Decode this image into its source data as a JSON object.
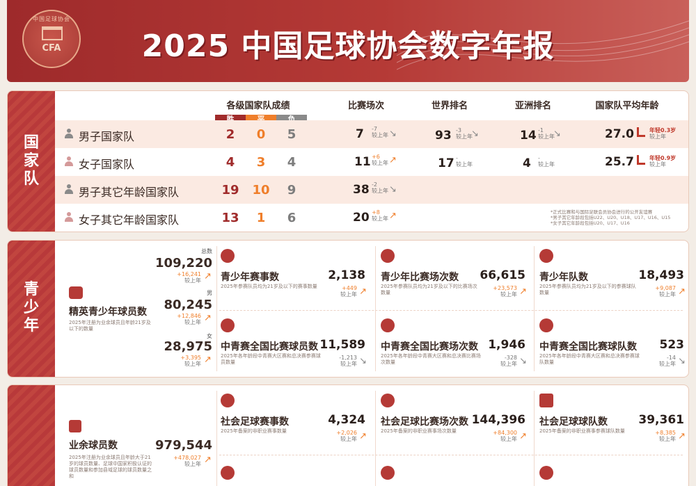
{
  "header": {
    "title": "2025 中国足球协会数字年报",
    "logo_text": "CFA",
    "logo_ring_text": "中国足球协会"
  },
  "national": {
    "side_label": [
      "国",
      "家",
      "队"
    ],
    "col_record": "各级国家队成绩",
    "col_matches": "比赛场次",
    "col_world": "世界排名",
    "col_asia": "亚洲排名",
    "col_age": "国家队平均年龄",
    "wdl": {
      "w": "胜",
      "d": "平",
      "l": "负"
    },
    "compare_label": "较上年",
    "rows": [
      {
        "name": "男子国家队",
        "w": "2",
        "d": "0",
        "l": "5",
        "matches": "7",
        "matches_delta": "-7",
        "world": "93",
        "world_delta": "-3",
        "asia": "14",
        "asia_delta": "-1",
        "age": "27.0",
        "age_note": "年轻0.3岁"
      },
      {
        "name": "女子国家队",
        "w": "4",
        "d": "3",
        "l": "4",
        "matches": "11",
        "matches_delta": "+6",
        "world": "17",
        "world_delta": "-",
        "asia": "4",
        "asia_delta": "-",
        "age": "25.7",
        "age_note": "年轻0.9岁"
      },
      {
        "name": "男子其它年龄国家队",
        "w": "19",
        "d": "10",
        "l": "9",
        "matches": "38",
        "matches_delta": "-2"
      },
      {
        "name": "女子其它年龄国家队",
        "w": "13",
        "d": "1",
        "l": "6",
        "matches": "20",
        "matches_delta": "+8"
      }
    ],
    "notes": [
      "*正式比赛和与国际足联会员协会进行的公开友谊赛",
      "*男子其它年龄段包括U22、U20、U18、U17、U16、U15",
      "*女子其它年龄段包括U20、U17、U16"
    ]
  },
  "youth": {
    "side_label": [
      "青",
      "少",
      "年"
    ],
    "elite": {
      "title": "精英青少年球员数",
      "desc": "2025年注册为业余球员且年龄21岁及以下的数量",
      "total_label": "总数",
      "total": "109,220",
      "total_delta": "+16,241",
      "male_label": "男",
      "male": "80,245",
      "male_delta": "+12,846",
      "female_label": "女",
      "female": "28,975",
      "female_delta": "+3,395",
      "compare_label": "较上年"
    },
    "cards": [
      {
        "title": "青少年赛事数",
        "desc": "2025年参赛队员均为21岁及以下的赛事数量",
        "value": "2,138",
        "delta": "+449",
        "dir": "up"
      },
      {
        "title": "青少年比赛场次数",
        "desc": "2025年参赛队员均为21岁及以下的比赛场次数量",
        "value": "66,615",
        "delta": "+23,573",
        "dir": "up"
      },
      {
        "title": "青少年队数",
        "desc": "2025年参赛队员均为21岁及以下的参赛球队数量",
        "value": "18,493",
        "delta": "+9,087",
        "dir": "up"
      },
      {
        "title": "中青赛全国比赛球员数",
        "desc": "2025年各年龄段中青赛大区赛和总决赛参赛球员数量",
        "value": "11,589",
        "delta": "-1,213",
        "dir": "down"
      },
      {
        "title": "中青赛全国比赛场次数",
        "desc": "2025年各年龄段中青赛大区赛和总决赛比赛场次数量",
        "value": "1,946",
        "delta": "-328",
        "dir": "down"
      },
      {
        "title": "中青赛全国比赛球队数",
        "desc": "2025年各年龄段中青赛大区赛和总决赛参赛球队数量",
        "value": "523",
        "delta": "-14",
        "dir": "down"
      }
    ]
  },
  "amateur": {
    "players": {
      "title": "业余球员数",
      "desc": "2025年注册为业余球员且年龄大于21岁的球员数量、足球中国家积极认证的球员数量和参加县域足球的球员数量之和",
      "value": "979,544",
      "delta": "+478,027"
    },
    "cards": [
      {
        "title": "社会足球赛事数",
        "desc": "2025年备案的非职业赛事数量",
        "value": "4,324",
        "delta": "+2,026",
        "dir": "up"
      },
      {
        "title": "社会足球比赛场次数",
        "desc": "2025年备案的非职业赛事场次数量",
        "value": "144,396",
        "delta": "+84,300",
        "dir": "up"
      },
      {
        "title": "社会足球球队数",
        "desc": "2025年备案的非职业赛事参赛球队数量",
        "value": "39,361",
        "delta": "+8,385",
        "dir": "up"
      }
    ],
    "compare_label": "较上年"
  },
  "colors": {
    "win": "#a02b2b",
    "draw": "#ef7e2a",
    "loss": "#7d7d7d",
    "brand": "#b53a36"
  }
}
